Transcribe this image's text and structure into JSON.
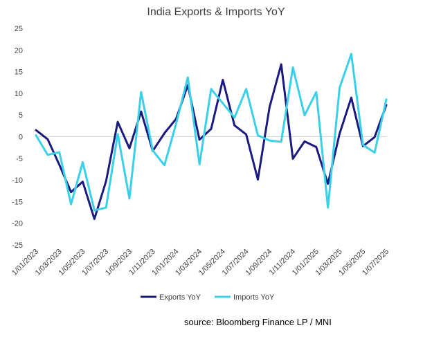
{
  "chart_data": {
    "type": "line",
    "title": "India Exports & Imports YoY",
    "xlabel": "",
    "ylabel": "",
    "ylim": [
      -25,
      25
    ],
    "yticks": [
      25,
      20,
      15,
      10,
      5,
      0,
      -5,
      -10,
      -15,
      -20,
      -25
    ],
    "x": [
      "1/01/2023",
      "1/02/2023",
      "1/03/2023",
      "1/04/2023",
      "1/05/2023",
      "1/06/2023",
      "1/07/2023",
      "1/08/2023",
      "1/09/2023",
      "1/10/2023",
      "1/11/2023",
      "1/12/2023",
      "1/01/2024",
      "1/02/2024",
      "1/03/2024",
      "1/04/2024",
      "1/05/2024",
      "1/06/2024",
      "1/07/2024",
      "1/08/2024",
      "1/09/2024",
      "1/10/2024",
      "1/11/2024",
      "1/12/2024",
      "1/01/2025",
      "1/02/2025",
      "1/03/2025",
      "1/04/2025",
      "1/05/2025",
      "1/06/2025",
      "1/07/2025"
    ],
    "xtick_labels": [
      "1/01/2023",
      "1/03/2023",
      "1/05/2023",
      "1/07/2023",
      "1/09/2023",
      "1/11/2023",
      "1/01/2024",
      "1/03/2024",
      "1/05/2024",
      "1/07/2024",
      "1/09/2024",
      "1/11/2024",
      "1/01/2025",
      "1/03/2025",
      "1/05/2025",
      "1/07/2025"
    ],
    "series": [
      {
        "name": "Exports YoY",
        "color": "#1a1a80",
        "values": [
          1.5,
          -0.6,
          -6.5,
          -12.8,
          -10.4,
          -19.0,
          -10.3,
          3.4,
          -2.7,
          5.8,
          -3.3,
          0.8,
          4.1,
          11.9,
          -0.7,
          1.8,
          13.1,
          2.6,
          0.5,
          -9.9,
          6.8,
          16.7,
          -5.1,
          -1.1,
          -2.4,
          -10.9,
          0.7,
          9.0,
          -2.2,
          -0.1,
          7.3
        ]
      },
      {
        "name": "Imports YoY",
        "color": "#3ad0e8",
        "values": [
          0.3,
          -4.2,
          -3.6,
          -15.6,
          -5.9,
          -17.0,
          -16.4,
          0.6,
          -14.3,
          10.3,
          -3.2,
          -6.6,
          3.0,
          13.7,
          -6.4,
          11.0,
          7.7,
          4.4,
          11.0,
          0.3,
          -0.9,
          -1.2,
          16.0,
          4.9,
          10.3,
          -16.4,
          11.3,
          19.1,
          -1.9,
          -3.7,
          8.6
        ]
      }
    ]
  },
  "source_note": "source: Bloomberg Finance LP / MNI"
}
